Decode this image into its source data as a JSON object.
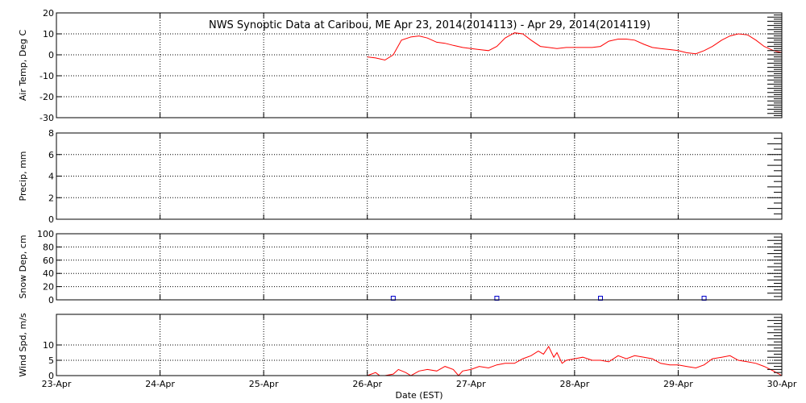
{
  "chart_data": {
    "type": "line",
    "title": "NWS Synoptic Data at Caribou, ME   Apr 23, 2014(2014113) - Apr 29, 2014(2014119)",
    "xlabel": "Date (EST)",
    "xlim": [
      0,
      7
    ],
    "x_ticks": [
      "23-Apr",
      "24-Apr",
      "25-Apr",
      "26-Apr",
      "27-Apr",
      "28-Apr",
      "29-Apr",
      "30-Apr"
    ],
    "grid": true,
    "panels": [
      {
        "ylabel": "Air Temp, Deg C",
        "ylim": [
          -30,
          20
        ],
        "yticks": [
          -30,
          -20,
          -10,
          0,
          10,
          20
        ],
        "color": "#ff0000",
        "series": [
          {
            "x": [
              3.0,
              3.08,
              3.17,
              3.25,
              3.33,
              3.42,
              3.5,
              3.58,
              3.67,
              3.75,
              3.83,
              3.92,
              4.0,
              4.08,
              4.17,
              4.25,
              4.33,
              4.42,
              4.5,
              4.58,
              4.67,
              4.75,
              4.83,
              4.92,
              5.0,
              5.08,
              5.17,
              5.25,
              5.33,
              5.42,
              5.5,
              5.58,
              5.67,
              5.75,
              5.83,
              5.92,
              6.0,
              6.08,
              6.17,
              6.25,
              6.33,
              6.42,
              6.5,
              6.58,
              6.67,
              6.75,
              6.83,
              6.92,
              7.0
            ],
            "y": [
              -1,
              -1.5,
              -2.5,
              0,
              7,
              8.5,
              9,
              8,
              6,
              5.5,
              4.5,
              3.5,
              3,
              2.5,
              2,
              4,
              8,
              10.5,
              10,
              7,
              4,
              3.5,
              3,
              3.5,
              3.5,
              3.5,
              3.5,
              4,
              6.5,
              7.5,
              7.5,
              7,
              5,
              3.5,
              3,
              2.5,
              2,
              1,
              0.5,
              2,
              4,
              7,
              9,
              10,
              9.5,
              7,
              4,
              2,
              1
            ]
          }
        ]
      },
      {
        "ylabel": "Precip, mm",
        "ylim": [
          0,
          8
        ],
        "yticks": [
          0,
          2,
          4,
          6,
          8
        ],
        "series": []
      },
      {
        "ylabel": "Snow Dep, cm",
        "ylim": [
          0,
          100
        ],
        "yticks": [
          0,
          20,
          40,
          60,
          80,
          100
        ],
        "color": "#0000cc",
        "series": [
          {
            "x": [
              3.25,
              4.25,
              5.25,
              6.25
            ],
            "y": [
              0,
              0,
              0,
              0
            ],
            "marker": "square"
          }
        ]
      },
      {
        "ylabel": "Wind Spd, m/s",
        "ylim": [
          0,
          20
        ],
        "yticks": [
          0,
          5,
          10
        ],
        "color": "#ff0000",
        "series": [
          {
            "x": [
              3.0,
              3.08,
              3.12,
              3.17,
              3.25,
              3.3,
              3.37,
              3.42,
              3.5,
              3.58,
              3.67,
              3.75,
              3.83,
              3.88,
              3.92,
              4.0,
              4.08,
              4.17,
              4.25,
              4.33,
              4.42,
              4.5,
              4.58,
              4.65,
              4.7,
              4.75,
              4.8,
              4.83,
              4.88,
              4.92,
              5.0,
              5.08,
              5.17,
              5.25,
              5.33,
              5.42,
              5.5,
              5.58,
              5.67,
              5.75,
              5.83,
              5.92,
              6.0,
              6.08,
              6.17,
              6.25,
              6.33,
              6.42,
              6.5,
              6.58,
              6.67,
              6.75,
              6.83,
              6.92,
              7.0
            ],
            "y": [
              0,
              1,
              0,
              0,
              0.5,
              2,
              1,
              0,
              1.5,
              2,
              1.5,
              3,
              2,
              0,
              1.5,
              2,
              3,
              2.5,
              3.5,
              4,
              4,
              5.5,
              6.5,
              8,
              7,
              9.5,
              6,
              7.5,
              4,
              5,
              5.5,
              6,
              5,
              5,
              4.5,
              6.5,
              5.5,
              6.5,
              6,
              5.5,
              4,
              3.5,
              3.5,
              3,
              2.5,
              3.5,
              5.5,
              6,
              6.5,
              5,
              4.5,
              4,
              3,
              1.5,
              0
            ]
          }
        ]
      }
    ]
  }
}
